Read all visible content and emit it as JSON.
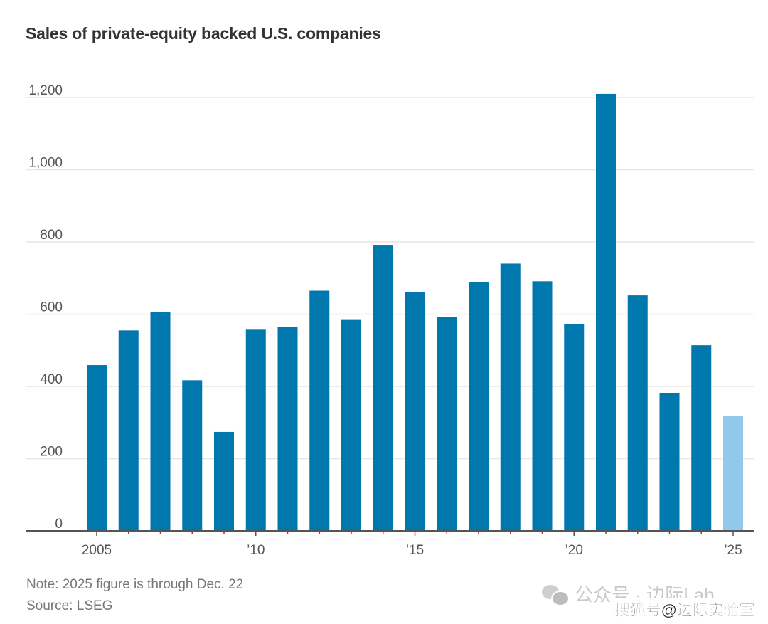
{
  "chart_data": {
    "type": "bar",
    "title": "Sales of private-equity backed U.S. companies",
    "xlabel": "",
    "ylabel": "",
    "categories": [
      "2005",
      "2006",
      "2007",
      "2008",
      "2009",
      "2010",
      "2011",
      "2012",
      "2013",
      "2014",
      "2015",
      "2016",
      "2017",
      "2018",
      "2019",
      "2020",
      "2021",
      "2022",
      "2023",
      "2024",
      "2025"
    ],
    "values": [
      459,
      555,
      606,
      417,
      274,
      557,
      564,
      665,
      584,
      790,
      662,
      593,
      688,
      740,
      691,
      573,
      1210,
      652,
      381,
      514,
      319
    ],
    "highlight": {
      "category": "2025",
      "meaning": "partial year (through Dec. 22)"
    },
    "ylim": [
      0,
      1200
    ],
    "yticks": [
      0,
      200,
      400,
      600,
      800,
      1000,
      1200
    ],
    "ytick_labels": [
      "0",
      "200",
      "400",
      "600",
      "800",
      "1,000",
      "1,200"
    ],
    "xtick_labels": [
      {
        "year": "2005",
        "label": "2005"
      },
      {
        "year": "2010",
        "label": "’10"
      },
      {
        "year": "2015",
        "label": "’15"
      },
      {
        "year": "2020",
        "label": "’20"
      },
      {
        "year": "2025",
        "label": "’25"
      }
    ],
    "grid": true,
    "colors": {
      "bar": "#0077ad",
      "bar_partial": "#92c8ea",
      "grid": "#e6e6e6",
      "axis": "#555555"
    }
  },
  "notes": {
    "note": "Note: 2025 figure is through Dec. 22",
    "source": "Source: LSEG"
  },
  "watermark": {
    "line1": "公众号 · 边际Lab",
    "line2": "搜狐号@边际实验室"
  }
}
